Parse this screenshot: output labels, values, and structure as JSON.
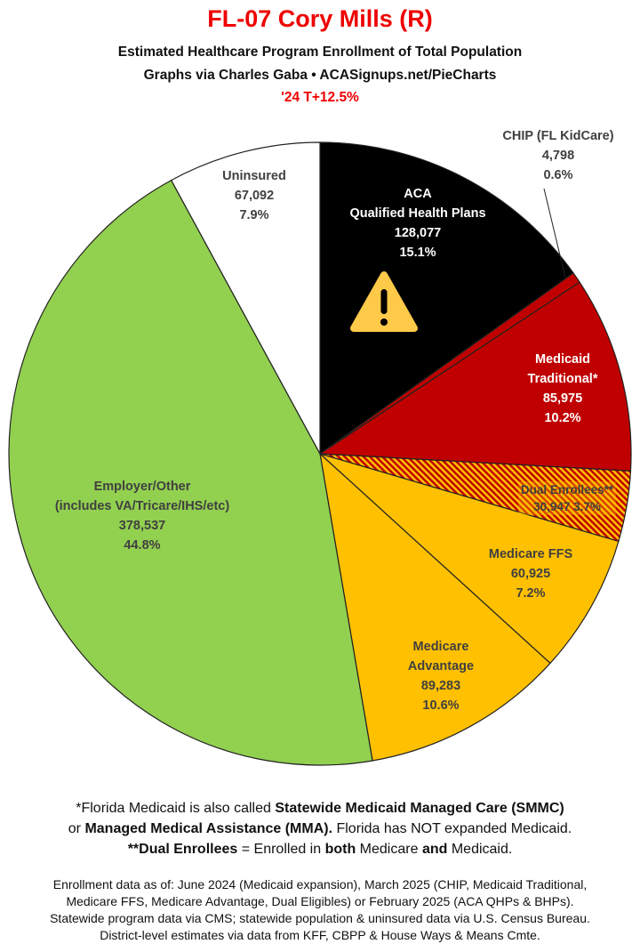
{
  "header": {
    "title": "FL-07 Cory Mills (R)",
    "subtitle1": "Estimated Healthcare Program Enrollment of Total Population",
    "subtitle2": "Graphs via Charles Gaba  •  ACASignups.net/PieCharts",
    "subtitle3": "'24 T+12.5%"
  },
  "chart_data": {
    "type": "pie",
    "start": "12 o'clock, clockwise",
    "slices": [
      {
        "name": "ACA Qualified Health Plans",
        "label_lines": [
          "ACA",
          "Qualified Health Plans"
        ],
        "value": 128077,
        "value_label": "128,077",
        "percent": 15.1,
        "percent_label": "15.1%",
        "color": "#000000"
      },
      {
        "name": "CHIP (FL KidCare)",
        "label_lines": [
          "CHIP (FL KidCare)"
        ],
        "value": 4798,
        "value_label": "4,798",
        "percent": 0.6,
        "percent_label": "0.6%",
        "color": "#c00000"
      },
      {
        "name": "Medicaid Traditional*",
        "label_lines": [
          "Medicaid",
          "Traditional*"
        ],
        "value": 85975,
        "value_label": "85,975",
        "percent": 10.2,
        "percent_label": "10.2%",
        "color": "#c00000"
      },
      {
        "name": "Dual Enrollees**",
        "label_lines": [
          "Dual Enrollees**"
        ],
        "value": 30947,
        "value_label": "30,947",
        "percent": 3.7,
        "percent_label": "3.7%",
        "color": "hatch-red-yellow"
      },
      {
        "name": "Medicare FFS",
        "label_lines": [
          "Medicare FFS"
        ],
        "value": 60925,
        "value_label": "60,925",
        "percent": 7.2,
        "percent_label": "7.2%",
        "color": "#ffc000"
      },
      {
        "name": "Medicare Advantage",
        "label_lines": [
          "Medicare",
          "Advantage"
        ],
        "value": 89283,
        "value_label": "89,283",
        "percent": 10.6,
        "percent_label": "10.6%",
        "color": "#ffc000"
      },
      {
        "name": "Employer/Other",
        "label_lines": [
          "Employer/Other",
          "(includes VA/Tricare/IHS/etc)"
        ],
        "value": 378537,
        "value_label": "378,537",
        "percent": 44.8,
        "percent_label": "44.8%",
        "color": "#92d050"
      },
      {
        "name": "Uninsured",
        "label_lines": [
          "Uninsured"
        ],
        "value": 67092,
        "value_label": "67,092",
        "percent": 7.9,
        "percent_label": "7.9%",
        "color": "#ffffff"
      }
    ],
    "annotation_icon": "warning-triangle-icon"
  },
  "notes": {
    "line1_a": "*Florida Medicaid is also called ",
    "line1_b": "Statewide Medicaid Managed Care (SMMC)",
    "line2_a": "or ",
    "line2_b": "Managed Medical Assistance (MMA).",
    "line2_c": " Florida has NOT expanded Medicaid.",
    "line3_a": "**Dual Enrollees",
    "line3_b": " = Enrolled in ",
    "line3_c": "both",
    "line3_d": " Medicare ",
    "line3_e": "and",
    "line3_f": " Medicaid."
  },
  "sources": [
    "Enrollment data as of: June 2024 (Medicaid expansion), March 2025 (CHIP, Medicaid Traditional,",
    "Medicare FFS, Medicare Advantage, Dual Eligibles) or February 2025 (ACA QHPs & BHPs).",
    "Statewide program data via CMS; statewide population & uninsured data via U.S. Census Bureau.",
    "District-level estimates via data from KFF, CBPP & House Ways & Means Cmte."
  ]
}
